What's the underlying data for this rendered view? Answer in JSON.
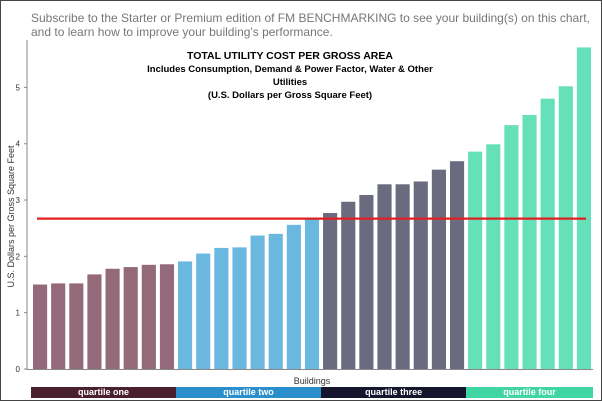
{
  "header": {
    "subscribe_line1": "Subscribe to the Starter or Premium edition of FM BENCHMARKING to see your building(s) on this chart,",
    "subscribe_line2": "and to learn how to improve your building's performance."
  },
  "chart_data": {
    "type": "bar",
    "title": "TOTAL UTILITY COST PER GROSS AREA",
    "subtitle": "Includes Consumption, Demand & Power Factor, Water & Other Utilities",
    "subtitle2": "(U.S. Dollars per Gross Square Feet)",
    "xlabel": "Buildings",
    "ylabel": "U.S. Dollars per Gross Square Feet",
    "ylim": [
      0,
      5.7
    ],
    "yticks": [
      "0",
      "1",
      "2",
      "3",
      "4",
      "5"
    ],
    "reference_line": 2.67,
    "reference_color": "#e02020",
    "grid": false,
    "values": [
      1.5,
      1.52,
      1.52,
      1.68,
      1.78,
      1.81,
      1.85,
      1.86,
      1.91,
      2.05,
      2.15,
      2.16,
      2.37,
      2.4,
      2.56,
      2.66,
      2.77,
      2.97,
      3.09,
      3.28,
      3.28,
      3.33,
      3.54,
      3.69,
      3.86,
      3.99,
      4.33,
      4.51,
      4.8,
      5.02,
      5.71
    ],
    "quartiles": [
      {
        "label": "quartile one",
        "start": 0,
        "end": 8,
        "bar_color": "#946a7b",
        "label_bg": "#4a1f2e"
      },
      {
        "label": "quartile two",
        "start": 8,
        "end": 16,
        "bar_color": "#6ab8e0",
        "label_bg": "#2b8fcc"
      },
      {
        "label": "quartile three",
        "start": 16,
        "end": 24,
        "bar_color": "#6b6b80",
        "label_bg": "#15152e"
      },
      {
        "label": "quartile four",
        "start": 24,
        "end": 31,
        "bar_color": "#66e0b8",
        "label_bg": "#3fd6a4"
      }
    ]
  }
}
